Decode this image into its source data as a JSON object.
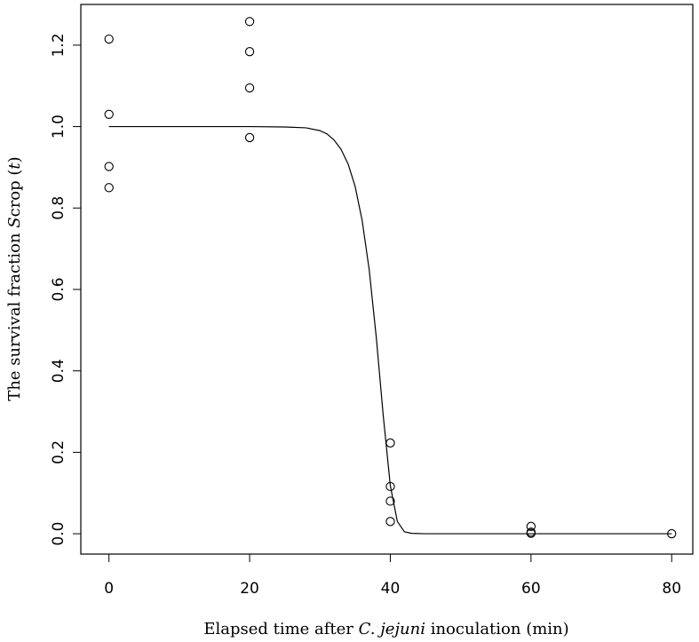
{
  "chart_data": {
    "type": "scatter",
    "xlabel": {
      "prefix": "Elapsed time after ",
      "italic": "C. jejuni",
      "suffix": " inoculation (min)"
    },
    "ylabel": {
      "prefix": "The survival fraction ",
      "italic_s": "S",
      "mid": "crop (",
      "italic_t": "t",
      "suffix": ")"
    },
    "xlim": [
      -4,
      83
    ],
    "ylim": [
      -0.05,
      1.3
    ],
    "x_ticks": [
      "0",
      "20",
      "40",
      "60",
      "80"
    ],
    "y_ticks": [
      "0.0",
      "0.2",
      "0.4",
      "0.6",
      "0.8",
      "1.0",
      "1.2"
    ],
    "grid": false,
    "legend": "none",
    "points": [
      {
        "x": 0,
        "y": 1.215
      },
      {
        "x": 0,
        "y": 1.03
      },
      {
        "x": 0,
        "y": 0.902
      },
      {
        "x": 0,
        "y": 0.85
      },
      {
        "x": 20,
        "y": 1.258
      },
      {
        "x": 20,
        "y": 1.184
      },
      {
        "x": 20,
        "y": 1.095
      },
      {
        "x": 20,
        "y": 0.973
      },
      {
        "x": 40,
        "y": 0.223
      },
      {
        "x": 40,
        "y": 0.116
      },
      {
        "x": 40,
        "y": 0.08
      },
      {
        "x": 40,
        "y": 0.03
      },
      {
        "x": 60,
        "y": 0.018
      },
      {
        "x": 60,
        "y": 0.004
      },
      {
        "x": 60,
        "y": 0.001
      },
      {
        "x": 80,
        "y": 0.0
      }
    ],
    "fitted_curve": {
      "type": "line",
      "x": [
        0,
        10,
        20,
        25,
        28,
        30,
        31,
        32,
        33,
        34,
        35,
        36,
        37,
        38,
        39,
        40,
        41,
        42,
        43,
        45,
        50,
        60,
        70,
        80
      ],
      "y": [
        1.0,
        1.0,
        1.0,
        0.999,
        0.997,
        0.99,
        0.982,
        0.967,
        0.944,
        0.908,
        0.853,
        0.769,
        0.648,
        0.483,
        0.289,
        0.118,
        0.03,
        0.005,
        0.001,
        0.0,
        0.0,
        0.0,
        0.0,
        0.0
      ]
    }
  }
}
